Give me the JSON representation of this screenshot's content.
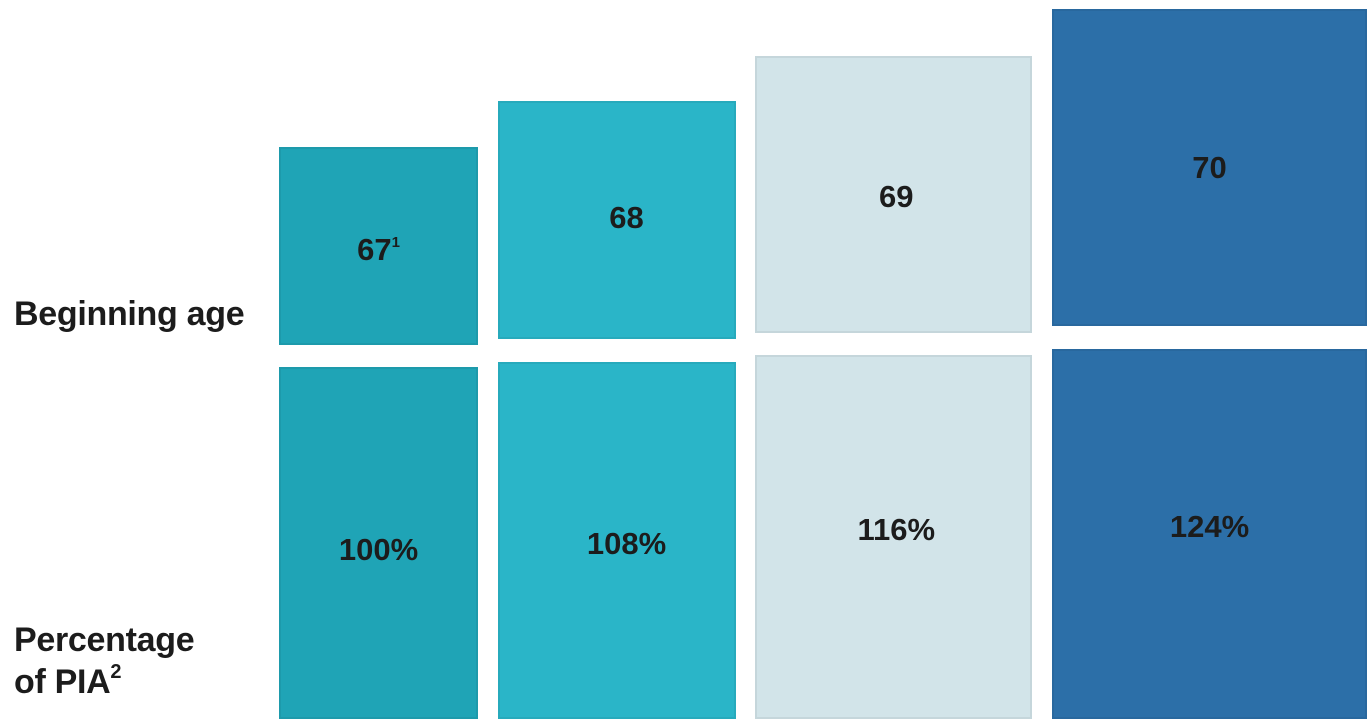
{
  "chart_data": {
    "type": "table",
    "rows": [
      {
        "label": "Beginning age",
        "values": [
          "67",
          "68",
          "69",
          "70"
        ],
        "footnote": "1",
        "footnote_column": 0
      },
      {
        "label": "Percentage",
        "label_line2": "of PIA",
        "label_footnote": "2",
        "values": [
          "100%",
          "108%",
          "116%",
          "124%"
        ]
      }
    ],
    "column_colors": [
      "#1fa4b6",
      "#2ab5c8",
      "#d2e4e9",
      "#2c6fa8"
    ]
  }
}
